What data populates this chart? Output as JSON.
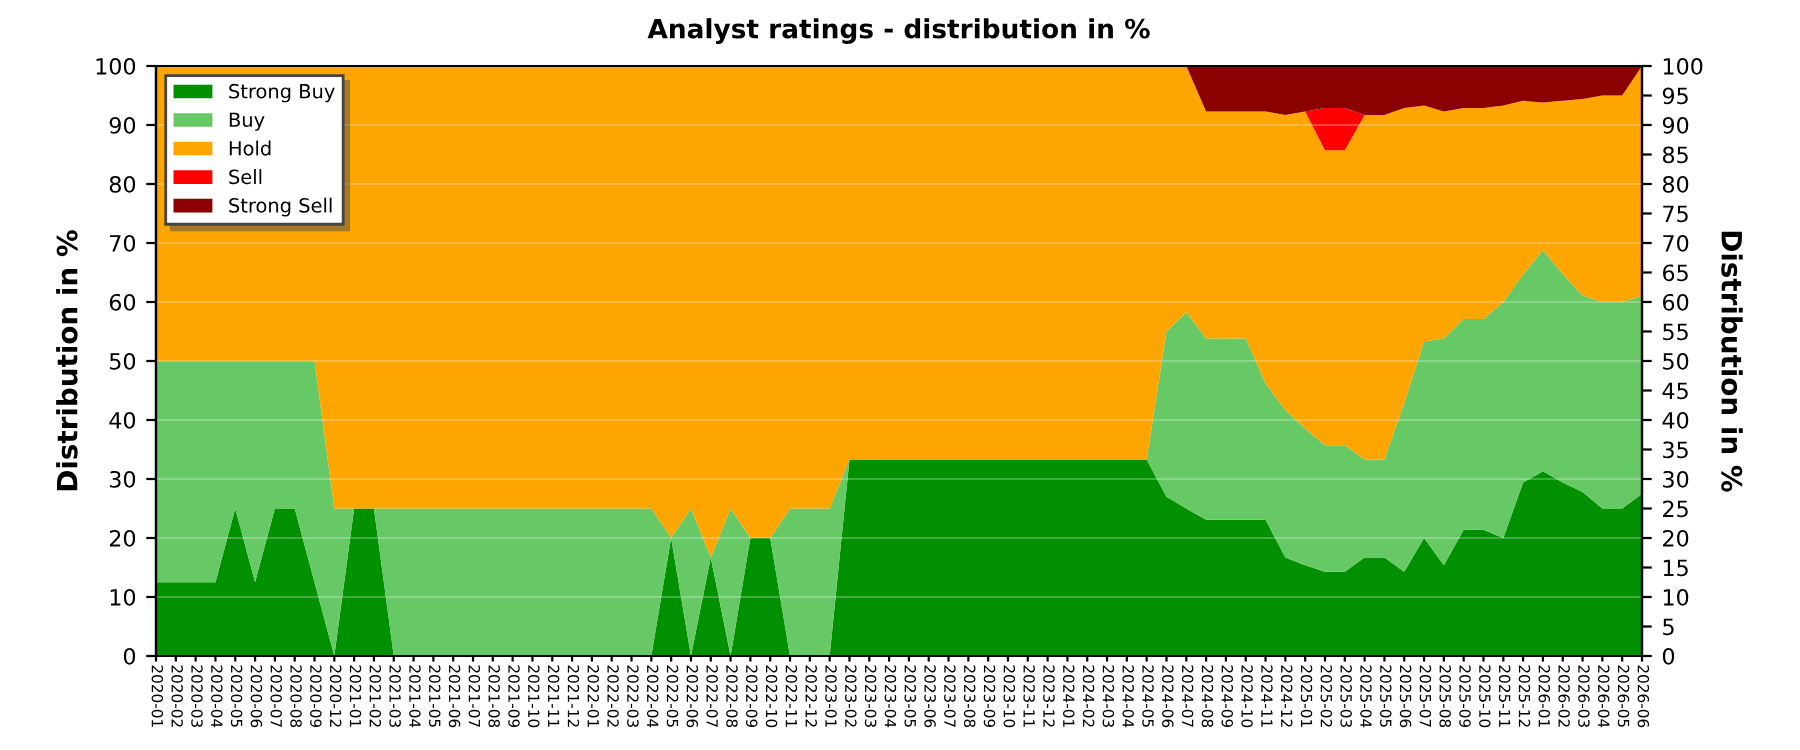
{
  "chart_data": {
    "type": "area",
    "stacked": true,
    "title": "Analyst ratings - distribution in %",
    "ylabel": "Distribution in %",
    "y2label": "Distribution in %",
    "categories": [
      "2020-01",
      "2020-02",
      "2020-03",
      "2020-04",
      "2020-05",
      "2020-06",
      "2020-07",
      "2020-08",
      "2020-09",
      "2020-12",
      "2021-01",
      "2021-02",
      "2021-03",
      "2021-04",
      "2021-05",
      "2021-06",
      "2021-07",
      "2021-08",
      "2021-09",
      "2021-10",
      "2021-11",
      "2021-12",
      "2022-01",
      "2022-02",
      "2022-03",
      "2022-04",
      "2022-05",
      "2022-06",
      "2022-07",
      "2022-08",
      "2022-09",
      "2022-10",
      "2022-11",
      "2022-12",
      "2023-01",
      "2023-02",
      "2023-03",
      "2023-04",
      "2023-05",
      "2023-06",
      "2023-07",
      "2023-08",
      "2023-09",
      "2023-10",
      "2023-11",
      "2023-12",
      "2024-01",
      "2024-02",
      "2024-03",
      "2024-04",
      "2024-05",
      "2024-06",
      "2024-07",
      "2024-08",
      "2024-09",
      "2024-10",
      "2024-11",
      "2024-12",
      "2025-01",
      "2025-02",
      "2025-03",
      "2025-04",
      "2025-05",
      "2025-06",
      "2025-07",
      "2025-08",
      "2025-09",
      "2025-10",
      "2025-11",
      "2025-12",
      "2026-01",
      "2026-02",
      "2026-03",
      "2026-04",
      "2026-05",
      "2026-06"
    ],
    "series": [
      {
        "name": "Strong Buy",
        "color": "#009000",
        "values": [
          12.5,
          12.5,
          12.5,
          12.5,
          25,
          12.5,
          25,
          25,
          12.5,
          0,
          25,
          25,
          0,
          0,
          0,
          0,
          0,
          0,
          0,
          0,
          0,
          0,
          0,
          0,
          0,
          0,
          20,
          0,
          16.7,
          0,
          20,
          20,
          0,
          0,
          0,
          33.3,
          33.3,
          33.3,
          33.3,
          33.3,
          33.3,
          33.3,
          33.3,
          33.3,
          33.3,
          33.3,
          33.3,
          33.3,
          33.3,
          33.3,
          33.3,
          27,
          25,
          23.1,
          23.1,
          23.1,
          23.1,
          16.7,
          15.4,
          14.3,
          14.3,
          16.7,
          16.7,
          14.3,
          20,
          15.4,
          21.4,
          21.4,
          20,
          29.4,
          31.3,
          29.4,
          27.8,
          25,
          25,
          27.5
        ]
      },
      {
        "name": "Buy",
        "color": "#66c966",
        "values": [
          37.5,
          37.5,
          37.5,
          37.5,
          25,
          37.5,
          25,
          25,
          37.5,
          25,
          0,
          0,
          25,
          25,
          25,
          25,
          25,
          25,
          25,
          25,
          25,
          25,
          25,
          25,
          25,
          25,
          0,
          25,
          0,
          25,
          0,
          0,
          25,
          25,
          25,
          0,
          0,
          0,
          0,
          0,
          0,
          0,
          0,
          0,
          0,
          0,
          0,
          0,
          0,
          0,
          0,
          28,
          33.3,
          30.7,
          30.7,
          30.7,
          23.1,
          25,
          23.1,
          21.4,
          21.4,
          16.6,
          16.6,
          28.6,
          33.3,
          38.4,
          35.7,
          35.7,
          40,
          35.3,
          37.5,
          35.3,
          33.3,
          35,
          35,
          33.5
        ]
      },
      {
        "name": "Hold",
        "color": "#ffa500",
        "values": [
          50,
          50,
          50,
          50,
          50,
          50,
          50,
          50,
          50,
          75,
          75,
          75,
          75,
          75,
          75,
          75,
          75,
          75,
          75,
          75,
          75,
          75,
          75,
          75,
          75,
          75,
          80,
          75,
          83.3,
          75,
          80,
          80,
          75,
          75,
          75,
          66.7,
          66.7,
          66.7,
          66.7,
          66.7,
          66.7,
          66.7,
          66.7,
          66.7,
          66.7,
          66.7,
          66.7,
          66.7,
          66.7,
          66.7,
          66.7,
          45,
          41.7,
          38.5,
          38.5,
          38.5,
          46.1,
          50,
          53.8,
          50,
          50,
          58.4,
          58.4,
          50,
          40,
          38.5,
          35.8,
          35.8,
          33.3,
          29.4,
          25,
          29.4,
          33.3,
          35,
          35,
          39
        ]
      },
      {
        "name": "Sell",
        "color": "#ff0000",
        "values": [
          0,
          0,
          0,
          0,
          0,
          0,
          0,
          0,
          0,
          0,
          0,
          0,
          0,
          0,
          0,
          0,
          0,
          0,
          0,
          0,
          0,
          0,
          0,
          0,
          0,
          0,
          0,
          0,
          0,
          0,
          0,
          0,
          0,
          0,
          0,
          0,
          0,
          0,
          0,
          0,
          0,
          0,
          0,
          0,
          0,
          0,
          0,
          0,
          0,
          0,
          0,
          0,
          0,
          0,
          0,
          0,
          0,
          0,
          0,
          7.2,
          7.2,
          0,
          0,
          0,
          0,
          0,
          0,
          0,
          0,
          0,
          0,
          0,
          0,
          0,
          0,
          0
        ]
      },
      {
        "name": "Strong Sell",
        "color": "#8b0000",
        "values": [
          0,
          0,
          0,
          0,
          0,
          0,
          0,
          0,
          0,
          0,
          0,
          0,
          0,
          0,
          0,
          0,
          0,
          0,
          0,
          0,
          0,
          0,
          0,
          0,
          0,
          0,
          0,
          0,
          0,
          0,
          0,
          0,
          0,
          0,
          0,
          0,
          0,
          0,
          0,
          0,
          0,
          0,
          0,
          0,
          0,
          0,
          0,
          0,
          0,
          0,
          0,
          0,
          0,
          7.7,
          7.7,
          7.7,
          7.7,
          8.3,
          7.7,
          7.1,
          7.1,
          8.3,
          8.3,
          7.1,
          6.7,
          7.7,
          7.1,
          7.1,
          6.7,
          5.9,
          6.2,
          5.9,
          5.6,
          5,
          5,
          0
        ]
      }
    ],
    "ylim": [
      0,
      100
    ],
    "yticks": [
      0,
      10,
      20,
      30,
      40,
      50,
      60,
      70,
      80,
      90,
      100
    ],
    "y2lim": [
      0,
      100
    ],
    "y2ticks": [
      0,
      5,
      10,
      15,
      20,
      25,
      30,
      35,
      40,
      45,
      50,
      55,
      60,
      65,
      70,
      75,
      80,
      85,
      90,
      95,
      100
    ],
    "grid": "y",
    "legend": "top left"
  }
}
